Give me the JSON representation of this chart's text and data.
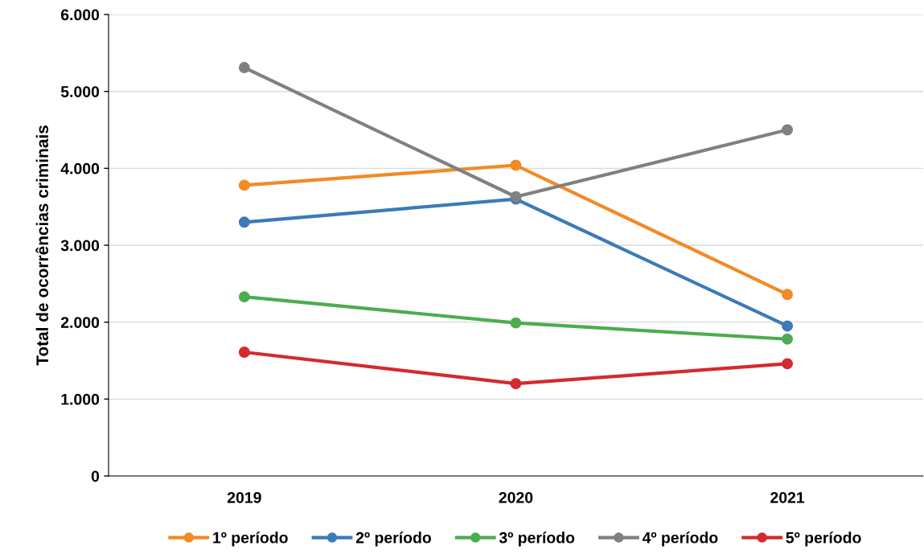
{
  "chart_data": {
    "type": "line",
    "ylabel": "Total de ocorrências criminais",
    "categories": [
      "2019",
      "2020",
      "2021"
    ],
    "series": [
      {
        "name": "1º período",
        "color": "#f28a25",
        "values": [
          3780,
          4040,
          2360
        ]
      },
      {
        "name": "2º período",
        "color": "#3a7bb8",
        "values": [
          3300,
          3600,
          1950
        ]
      },
      {
        "name": "3º período",
        "color": "#4cad4f",
        "values": [
          2330,
          1990,
          1780
        ]
      },
      {
        "name": "4º período",
        "color": "#808080",
        "values": [
          5310,
          3630,
          4500
        ]
      },
      {
        "name": "5º período",
        "color": "#d42a2e",
        "values": [
          1610,
          1200,
          1460
        ]
      }
    ],
    "ylim": [
      0,
      6000
    ],
    "yticks": [
      0,
      {
        "value": 1000,
        "label": "1.000"
      },
      {
        "value": 2000,
        "label": "2.000"
      },
      {
        "value": 3000,
        "label": "3.000"
      },
      {
        "value": 4000,
        "label": "4.000"
      },
      {
        "value": 5000,
        "label": "5.000"
      },
      {
        "value": 6000,
        "label": "6.000"
      }
    ],
    "grid": "y",
    "legend": "bottom",
    "marker": "circle",
    "line_style": "solid"
  }
}
